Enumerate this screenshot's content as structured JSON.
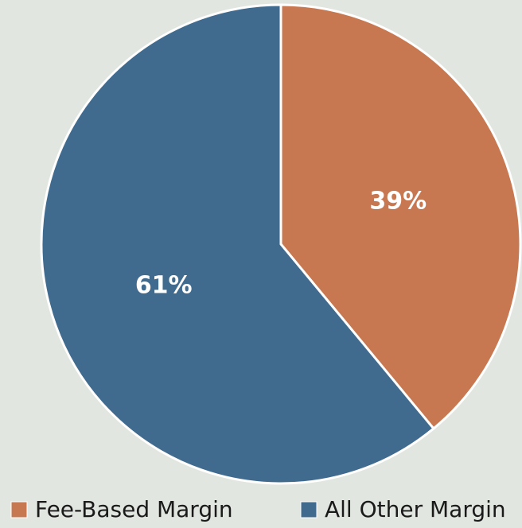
{
  "chart_data": {
    "type": "pie",
    "categories": [
      "Fee-Based Margin",
      "All Other Margin"
    ],
    "values": [
      39,
      61
    ],
    "value_labels": [
      "39%",
      "61%"
    ],
    "colors": [
      "#c87850",
      "#416b8e"
    ]
  }
}
